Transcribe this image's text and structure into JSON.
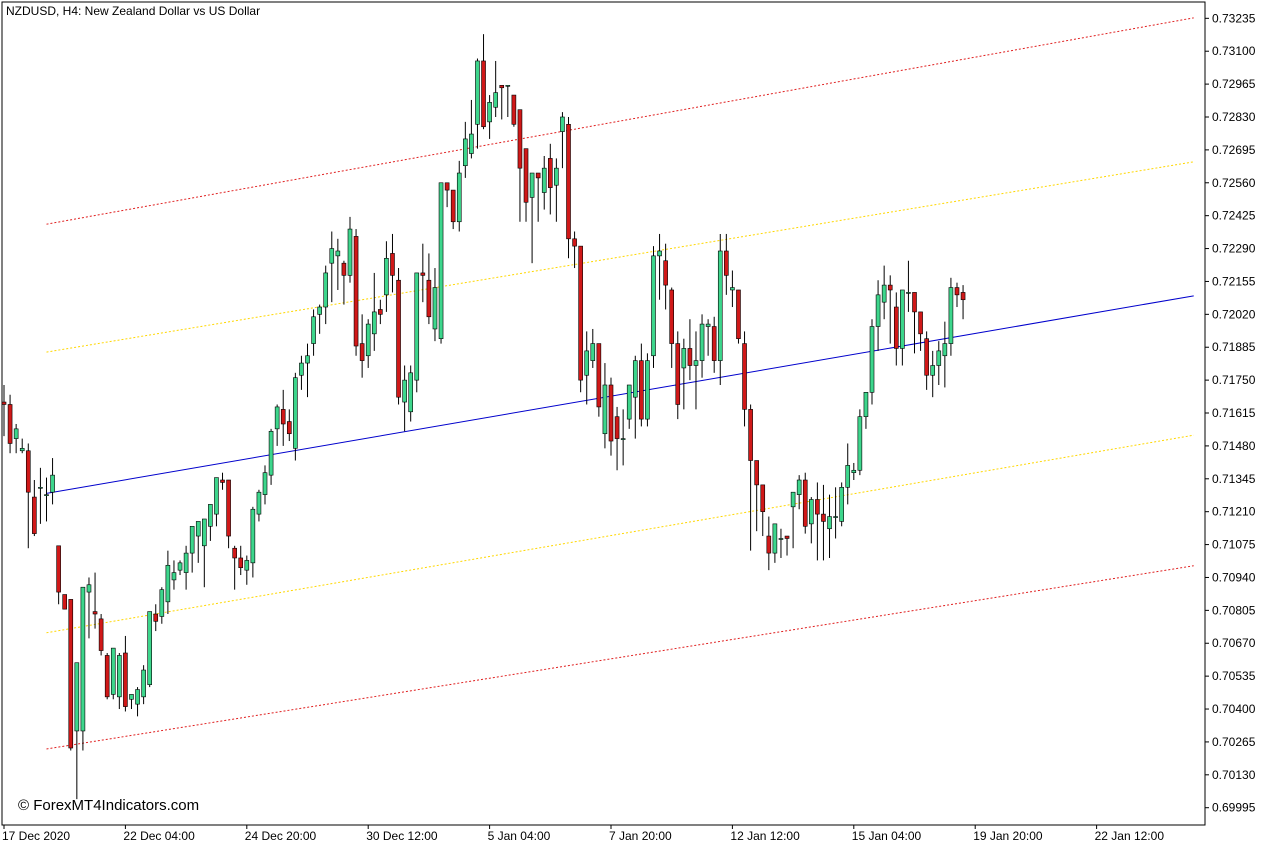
{
  "chart": {
    "title": "NZDUSD, H4:  New Zealand Dollar vs US Dollar",
    "watermark": "© ForexMT4Indicators.com"
  },
  "colors": {
    "background": "#ffffff",
    "frame": "#000000",
    "bull_body": "#3dd68c",
    "bear_body": "#d01818",
    "wick": "#000000",
    "center_line": "#0000cc",
    "inner_band": "#ffd700",
    "outer_band": "#e02020"
  },
  "chart_data": {
    "type": "candlestick",
    "symbol": "NZDUSD",
    "timeframe": "H4",
    "y_range": [
      0.69924,
      0.73302
    ],
    "y_ticks": [
      "0.73235",
      "0.73100",
      "0.72965",
      "0.72830",
      "0.72695",
      "0.72560",
      "0.72425",
      "0.72290",
      "0.72155",
      "0.72020",
      "0.71885",
      "0.71750",
      "0.71615",
      "0.71480",
      "0.71345",
      "0.71210",
      "0.71075",
      "0.70940",
      "0.70805",
      "0.70670",
      "0.70535",
      "0.70400",
      "0.70265",
      "0.70130",
      "0.69995"
    ],
    "x_ticks": [
      {
        "label": "17 Dec 2020",
        "bar": 0
      },
      {
        "label": "22 Dec 04:00",
        "bar": 20
      },
      {
        "label": "24 Dec 20:00",
        "bar": 40
      },
      {
        "label": "30 Dec 12:00",
        "bar": 60
      },
      {
        "label": "5 Jan 04:00",
        "bar": 80
      },
      {
        "label": "7 Jan 20:00",
        "bar": 100
      },
      {
        "label": "12 Jan 12:00",
        "bar": 120
      },
      {
        "label": "15 Jan 04:00",
        "bar": 140
      },
      {
        "label": "19 Jan 20:00",
        "bar": 160
      },
      {
        "label": "22 Jan 12:00",
        "bar": 180
      }
    ],
    "candles_ohlc": [
      [
        0.7166,
        0.7173,
        0.7152,
        0.7165
      ],
      [
        0.7165,
        0.7169,
        0.7145,
        0.7149
      ],
      [
        0.7151,
        0.7157,
        0.7145,
        0.7155
      ],
      [
        0.7146,
        0.7151,
        0.7145,
        0.7147
      ],
      [
        0.7146,
        0.7149,
        0.7106,
        0.7129
      ],
      [
        0.7127,
        0.7134,
        0.7111,
        0.7112
      ],
      [
        0.7131,
        0.7139,
        0.7116,
        0.7131
      ],
      [
        0.7128,
        0.7135,
        0.7117,
        0.7128
      ],
      [
        0.7129,
        0.7143,
        0.7124,
        0.7136
      ],
      [
        0.7107,
        0.7107,
        0.7083,
        0.7088
      ],
      [
        0.7087,
        0.7085,
        0.7081,
        0.7081
      ],
      [
        0.7085,
        0.7085,
        0.7023,
        0.7024
      ],
      [
        0.7031,
        0.7033,
        0.7003,
        0.7059
      ],
      [
        0.7031,
        0.7085,
        0.7023,
        0.709
      ],
      [
        0.7088,
        0.7094,
        0.7069,
        0.7091
      ],
      [
        0.708,
        0.7096,
        0.7073,
        0.7079
      ],
      [
        0.7077,
        0.7079,
        0.7062,
        0.7064
      ],
      [
        0.7062,
        0.7063,
        0.7044,
        0.7045
      ],
      [
        0.7046,
        0.7047,
        0.7044,
        0.7065
      ],
      [
        0.7045,
        0.7063,
        0.704,
        0.7062
      ],
      [
        0.7063,
        0.707,
        0.7039,
        0.7041
      ],
      [
        0.7044,
        0.7045,
        0.704,
        0.7046
      ],
      [
        0.7042,
        0.7049,
        0.7037,
        0.7048
      ],
      [
        0.7045,
        0.7058,
        0.7042,
        0.7056
      ],
      [
        0.705,
        0.708,
        0.7049,
        0.708
      ],
      [
        0.7079,
        0.7083,
        0.7072,
        0.7076
      ],
      [
        0.7078,
        0.709,
        0.7075,
        0.7089
      ],
      [
        0.7084,
        0.7105,
        0.7079,
        0.7099
      ],
      [
        0.7093,
        0.7101,
        0.7089,
        0.7096
      ],
      [
        0.7097,
        0.7101,
        0.7095,
        0.71
      ],
      [
        0.7096,
        0.7107,
        0.7089,
        0.7104
      ],
      [
        0.7104,
        0.7115,
        0.7096,
        0.7115
      ],
      [
        0.7111,
        0.7117,
        0.71,
        0.7117
      ],
      [
        0.7107,
        0.7118,
        0.709,
        0.7118
      ],
      [
        0.7115,
        0.7124,
        0.7109,
        0.7124
      ],
      [
        0.712,
        0.7135,
        0.7115,
        0.7135
      ],
      [
        0.7134,
        0.7137,
        0.713,
        0.7133
      ],
      [
        0.7134,
        0.7134,
        0.7106,
        0.7111
      ],
      [
        0.7106,
        0.7107,
        0.7089,
        0.7102
      ],
      [
        0.7102,
        0.7107,
        0.7095,
        0.7098
      ],
      [
        0.7097,
        0.7103,
        0.7091,
        0.7101
      ],
      [
        0.71,
        0.7123,
        0.7094,
        0.7122
      ],
      [
        0.712,
        0.713,
        0.7117,
        0.7129
      ],
      [
        0.7128,
        0.714,
        0.7124,
        0.7137
      ],
      [
        0.7136,
        0.7155,
        0.7132,
        0.7154
      ],
      [
        0.7155,
        0.7165,
        0.7148,
        0.7164
      ],
      [
        0.7163,
        0.7171,
        0.7148,
        0.7157
      ],
      [
        0.7158,
        0.7163,
        0.715,
        0.7153
      ],
      [
        0.7147,
        0.7178,
        0.7142,
        0.7176
      ],
      [
        0.7177,
        0.7185,
        0.7171,
        0.7182
      ],
      [
        0.7182,
        0.719,
        0.7168,
        0.7185
      ],
      [
        0.719,
        0.7204,
        0.7185,
        0.7201
      ],
      [
        0.7202,
        0.7206,
        0.7194,
        0.7205
      ],
      [
        0.7205,
        0.7222,
        0.7198,
        0.7219
      ],
      [
        0.7223,
        0.7236,
        0.7207,
        0.7229
      ],
      [
        0.7226,
        0.7233,
        0.7212,
        0.7228
      ],
      [
        0.7223,
        0.7224,
        0.7206,
        0.7218
      ],
      [
        0.7218,
        0.7242,
        0.7215,
        0.7237
      ],
      [
        0.7234,
        0.7237,
        0.7185,
        0.7189
      ],
      [
        0.719,
        0.7202,
        0.7176,
        0.7183
      ],
      [
        0.7185,
        0.72,
        0.718,
        0.7198
      ],
      [
        0.7194,
        0.7219,
        0.7187,
        0.7203
      ],
      [
        0.7204,
        0.7208,
        0.7198,
        0.7202
      ],
      [
        0.721,
        0.7232,
        0.7203,
        0.7225
      ],
      [
        0.7227,
        0.7235,
        0.7211,
        0.7218
      ],
      [
        0.7216,
        0.7221,
        0.7165,
        0.7168
      ],
      [
        0.7166,
        0.7181,
        0.7154,
        0.7175
      ],
      [
        0.7162,
        0.7181,
        0.7158,
        0.7178
      ],
      [
        0.7175,
        0.7213,
        0.717,
        0.7219
      ],
      [
        0.7219,
        0.7231,
        0.7207,
        0.7218
      ],
      [
        0.7216,
        0.7227,
        0.7198,
        0.7201
      ],
      [
        0.7196,
        0.7221,
        0.7191,
        0.7213
      ],
      [
        0.7192,
        0.7211,
        0.719,
        0.7256
      ],
      [
        0.7256,
        0.7256,
        0.7246,
        0.7253
      ],
      [
        0.7253,
        0.7253,
        0.7237,
        0.724
      ],
      [
        0.724,
        0.7265,
        0.7236,
        0.726
      ],
      [
        0.7263,
        0.7281,
        0.7258,
        0.7274
      ],
      [
        0.7268,
        0.729,
        0.7266,
        0.7276
      ],
      [
        0.728,
        0.7307,
        0.727,
        0.7306
      ],
      [
        0.7306,
        0.7317,
        0.7278,
        0.7279
      ],
      [
        0.7281,
        0.7292,
        0.7274,
        0.7289
      ],
      [
        0.7287,
        0.7306,
        0.7283,
        0.7293
      ],
      [
        0.7296,
        0.7295,
        0.7282,
        0.7295
      ],
      [
        0.7296,
        0.7295,
        0.7283,
        0.7296
      ],
      [
        0.7292,
        0.729,
        0.7279,
        0.728
      ],
      [
        0.7286,
        0.7283,
        0.724,
        0.7262
      ],
      [
        0.727,
        0.7259,
        0.724,
        0.7248
      ],
      [
        0.725,
        0.724,
        0.7223,
        0.726
      ],
      [
        0.726,
        0.726,
        0.724,
        0.7258
      ],
      [
        0.7252,
        0.7267,
        0.7245,
        0.7262
      ],
      [
        0.7266,
        0.7272,
        0.7243,
        0.7254
      ],
      [
        0.7255,
        0.7266,
        0.724,
        0.7262
      ],
      [
        0.7277,
        0.7285,
        0.7262,
        0.7283
      ],
      [
        0.728,
        0.7283,
        0.7225,
        0.7233
      ],
      [
        0.7233,
        0.7236,
        0.7221,
        0.723
      ],
      [
        0.723,
        0.723,
        0.717,
        0.7175
      ],
      [
        0.7177,
        0.7195,
        0.7165,
        0.7187
      ],
      [
        0.7183,
        0.7196,
        0.718,
        0.719
      ],
      [
        0.719,
        0.7181,
        0.716,
        0.7164
      ],
      [
        0.7153,
        0.7182,
        0.7147,
        0.7173
      ],
      [
        0.7173,
        0.7176,
        0.7144,
        0.715
      ],
      [
        0.716,
        0.7164,
        0.7138,
        0.7151
      ],
      [
        0.7151,
        0.7163,
        0.714,
        0.7151
      ],
      [
        0.7159,
        0.7173,
        0.7155,
        0.7173
      ],
      [
        0.7168,
        0.7185,
        0.7151,
        0.7183
      ],
      [
        0.7183,
        0.719,
        0.7156,
        0.7159
      ],
      [
        0.7159,
        0.7186,
        0.7156,
        0.7183
      ],
      [
        0.7185,
        0.723,
        0.718,
        0.7226
      ],
      [
        0.7226,
        0.7235,
        0.7208,
        0.7228
      ],
      [
        0.7224,
        0.7231,
        0.7204,
        0.7214
      ],
      [
        0.7212,
        0.7213,
        0.718,
        0.719
      ],
      [
        0.719,
        0.7195,
        0.7159,
        0.7165
      ],
      [
        0.718,
        0.7192,
        0.7163,
        0.7188
      ],
      [
        0.7188,
        0.72,
        0.7175,
        0.7181
      ],
      [
        0.7181,
        0.7195,
        0.7163,
        0.7183
      ],
      [
        0.7183,
        0.7202,
        0.7176,
        0.7198
      ],
      [
        0.7197,
        0.72,
        0.7185,
        0.7198
      ],
      [
        0.7197,
        0.7201,
        0.7178,
        0.7183
      ],
      [
        0.7183,
        0.7235,
        0.7173,
        0.7228
      ],
      [
        0.7228,
        0.7235,
        0.721,
        0.7218
      ],
      [
        0.7212,
        0.722,
        0.7205,
        0.7213
      ],
      [
        0.7212,
        0.721,
        0.719,
        0.7192
      ],
      [
        0.719,
        0.7195,
        0.7156,
        0.7163
      ],
      [
        0.7163,
        0.7165,
        0.7105,
        0.7142
      ],
      [
        0.7142,
        0.7142,
        0.7113,
        0.7132
      ],
      [
        0.7132,
        0.7131,
        0.7111,
        0.7121
      ],
      [
        0.7111,
        0.7119,
        0.7097,
        0.7104
      ],
      [
        0.7104,
        0.7111,
        0.71,
        0.7116
      ],
      [
        0.711,
        0.7114,
        0.7102,
        0.711
      ],
      [
        0.7111,
        0.7111,
        0.7103,
        0.711
      ],
      [
        0.7123,
        0.7123,
        0.7106,
        0.7129
      ],
      [
        0.7128,
        0.7136,
        0.7122,
        0.7134
      ],
      [
        0.7134,
        0.7137,
        0.7112,
        0.7115
      ],
      [
        0.7116,
        0.7127,
        0.7108,
        0.7126
      ],
      [
        0.7126,
        0.7133,
        0.7101,
        0.712
      ],
      [
        0.712,
        0.7132,
        0.7101,
        0.7117
      ],
      [
        0.7114,
        0.7128,
        0.7102,
        0.7119
      ],
      [
        0.7119,
        0.7131,
        0.711,
        0.7119
      ],
      [
        0.7117,
        0.7133,
        0.7115,
        0.7131
      ],
      [
        0.7131,
        0.7149,
        0.7124,
        0.714
      ],
      [
        0.7137,
        0.7141,
        0.7134,
        0.7138
      ],
      [
        0.7138,
        0.7163,
        0.7136,
        0.716
      ],
      [
        0.716,
        0.717,
        0.7155,
        0.717
      ],
      [
        0.717,
        0.72,
        0.7165,
        0.7197
      ],
      [
        0.7197,
        0.7216,
        0.7187,
        0.721
      ],
      [
        0.7207,
        0.7222,
        0.72,
        0.7214
      ],
      [
        0.7214,
        0.7218,
        0.719,
        0.7212
      ],
      [
        0.7205,
        0.7211,
        0.7181,
        0.7188
      ],
      [
        0.7188,
        0.721,
        0.7181,
        0.7212
      ],
      [
        0.7211,
        0.7224,
        0.7203,
        0.7211
      ],
      [
        0.7211,
        0.7207,
        0.7186,
        0.7203
      ],
      [
        0.7203,
        0.7201,
        0.7187,
        0.7194
      ],
      [
        0.7192,
        0.7195,
        0.7171,
        0.7177
      ],
      [
        0.7177,
        0.7187,
        0.7168,
        0.7181
      ],
      [
        0.7181,
        0.7191,
        0.7173,
        0.7187
      ],
      [
        0.7185,
        0.7199,
        0.7172,
        0.719
      ],
      [
        0.719,
        0.7217,
        0.7185,
        0.7213
      ],
      [
        0.7213,
        0.7215,
        0.7205,
        0.721
      ],
      [
        0.7211,
        0.7214,
        0.72,
        0.7208
      ]
    ],
    "regression_channel": {
      "start_bar": 7,
      "end_bar": 196,
      "center": [
        0.71285,
        0.72096
      ],
      "inner_upper": [
        0.71865,
        0.72646
      ],
      "inner_lower": [
        0.70713,
        0.71524
      ],
      "outer_upper": [
        0.7239,
        0.73237
      ],
      "outer_lower": [
        0.70236,
        0.70988
      ]
    }
  }
}
